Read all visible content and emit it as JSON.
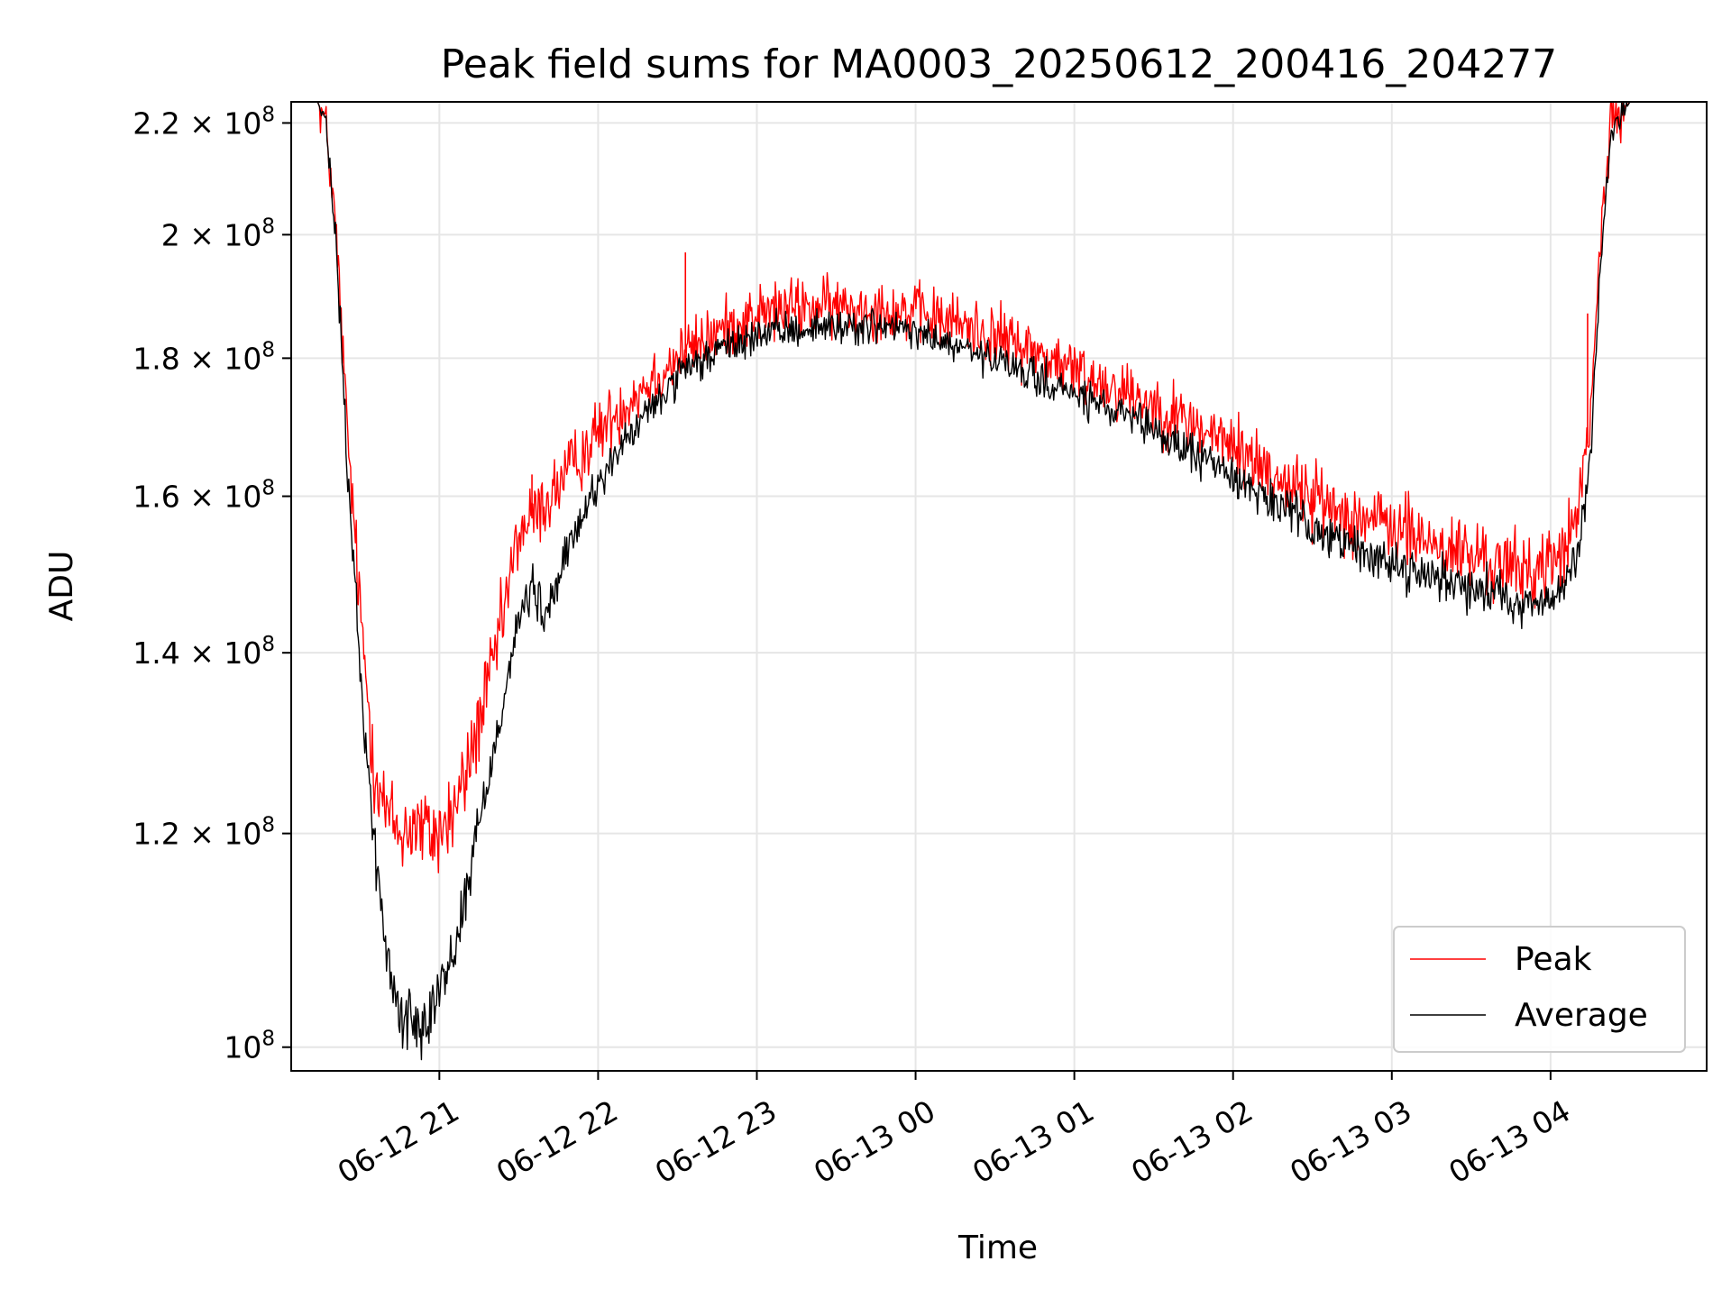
{
  "chart_data": {
    "type": "line",
    "title": "Peak field sums for MA0003_20250612_200416_204277",
    "xlabel": "Time",
    "ylabel": "ADU",
    "y_scale": "log",
    "ylim": [
      98000000,
      224000000
    ],
    "xlim": [
      "2025-06-12 20:04",
      "2025-06-13 04:59"
    ],
    "grid": true,
    "legend_position": "lower right",
    "x_ticks": [
      {
        "t": "2025-06-12 21:00",
        "label": "06-12 21"
      },
      {
        "t": "2025-06-12 22:00",
        "label": "06-12 22"
      },
      {
        "t": "2025-06-12 23:00",
        "label": "06-12 23"
      },
      {
        "t": "2025-06-13 00:00",
        "label": "06-13 00"
      },
      {
        "t": "2025-06-13 01:00",
        "label": "06-13 01"
      },
      {
        "t": "2025-06-13 02:00",
        "label": "06-13 02"
      },
      {
        "t": "2025-06-13 03:00",
        "label": "06-13 03"
      },
      {
        "t": "2025-06-13 04:00",
        "label": "06-13 04"
      }
    ],
    "y_ticks": [
      {
        "value": 100000000,
        "mant": "",
        "base": "10",
        "exp": "8"
      },
      {
        "value": 120000000,
        "mant": "1.2",
        "base": "10",
        "exp": "8"
      },
      {
        "value": 140000000,
        "mant": "1.4",
        "base": "10",
        "exp": "8"
      },
      {
        "value": 160000000,
        "mant": "1.6",
        "base": "10",
        "exp": "8"
      },
      {
        "value": 180000000,
        "mant": "1.8",
        "base": "10",
        "exp": "8"
      },
      {
        "value": 200000000,
        "mant": "2",
        "base": "10",
        "exp": "8"
      },
      {
        "value": 220000000,
        "mant": "2.2",
        "base": "10",
        "exp": "8"
      }
    ],
    "series": [
      {
        "name": "Peak",
        "color": "#ff0000",
        "noise": 2400000,
        "x": [
          "2025-06-12 20:04",
          "2025-06-12 20:14",
          "2025-06-12 20:17",
          "2025-06-12 20:21",
          "2025-06-12 20:25",
          "2025-06-12 20:30",
          "2025-06-12 20:35",
          "2025-06-12 20:40",
          "2025-06-12 20:45",
          "2025-06-12 20:50",
          "2025-06-12 20:55",
          "2025-06-12 21:00",
          "2025-06-12 21:05",
          "2025-06-12 21:10",
          "2025-06-12 21:15",
          "2025-06-12 21:20",
          "2025-06-12 21:25",
          "2025-06-12 21:30",
          "2025-06-12 21:35",
          "2025-06-12 21:40",
          "2025-06-12 21:50",
          "2025-06-12 22:00",
          "2025-06-12 22:15",
          "2025-06-12 22:30",
          "2025-06-12 22:45",
          "2025-06-12 23:00",
          "2025-06-12 23:15",
          "2025-06-12 23:30",
          "2025-06-12 23:45",
          "2025-06-13 00:00",
          "2025-06-13 00:20",
          "2025-06-13 00:40",
          "2025-06-13 01:00",
          "2025-06-13 01:20",
          "2025-06-13 01:40",
          "2025-06-13 02:00",
          "2025-06-13 02:20",
          "2025-06-13 02:40",
          "2025-06-13 03:00",
          "2025-06-13 03:20",
          "2025-06-13 03:40",
          "2025-06-13 03:50",
          "2025-06-13 04:00",
          "2025-06-13 04:05",
          "2025-06-13 04:10",
          "2025-06-13 04:15",
          "2025-06-13 04:19",
          "2025-06-13 04:23",
          "2025-06-13 04:30",
          "2025-06-13 04:59"
        ],
        "y": [
          224000000,
          224000000,
          220000000,
          200000000,
          170000000,
          145000000,
          128000000,
          122000000,
          120000000,
          121000000,
          120000000,
          120000000,
          122000000,
          126000000,
          132000000,
          138000000,
          146000000,
          155000000,
          157000000,
          159000000,
          164000000,
          169000000,
          175000000,
          180000000,
          184000000,
          187000000,
          188000000,
          188000000,
          188000000,
          187000000,
          185000000,
          182000000,
          178000000,
          175000000,
          171000000,
          167000000,
          162000000,
          158000000,
          156000000,
          153000000,
          151000000,
          150000000,
          151000000,
          153000000,
          157000000,
          170000000,
          200000000,
          220000000,
          224000000,
          224000000
        ]
      },
      {
        "name": "Average",
        "color": "#000000",
        "noise": 1400000,
        "x": [
          "2025-06-12 20:04",
          "2025-06-12 20:14",
          "2025-06-12 20:17",
          "2025-06-12 20:21",
          "2025-06-12 20:25",
          "2025-06-12 20:30",
          "2025-06-12 20:35",
          "2025-06-12 20:40",
          "2025-06-12 20:45",
          "2025-06-12 20:50",
          "2025-06-12 20:55",
          "2025-06-12 21:00",
          "2025-06-12 21:05",
          "2025-06-12 21:10",
          "2025-06-12 21:15",
          "2025-06-12 21:20",
          "2025-06-12 21:25",
          "2025-06-12 21:30",
          "2025-06-12 21:35",
          "2025-06-12 21:40",
          "2025-06-12 21:50",
          "2025-06-12 22:00",
          "2025-06-12 22:15",
          "2025-06-12 22:30",
          "2025-06-12 22:45",
          "2025-06-12 23:00",
          "2025-06-12 23:15",
          "2025-06-12 23:30",
          "2025-06-12 23:45",
          "2025-06-13 00:00",
          "2025-06-13 00:20",
          "2025-06-13 00:40",
          "2025-06-13 01:00",
          "2025-06-13 01:20",
          "2025-06-13 01:40",
          "2025-06-13 02:00",
          "2025-06-13 02:20",
          "2025-06-13 02:40",
          "2025-06-13 03:00",
          "2025-06-13 03:20",
          "2025-06-13 03:40",
          "2025-06-13 03:50",
          "2025-06-13 04:00",
          "2025-06-13 04:05",
          "2025-06-13 04:10",
          "2025-06-13 04:15",
          "2025-06-13 04:19",
          "2025-06-13 04:23",
          "2025-06-13 04:30",
          "2025-06-13 04:59"
        ],
        "y": [
          224000000,
          224000000,
          220000000,
          198000000,
          165000000,
          138000000,
          120000000,
          108000000,
          103000000,
          102000000,
          103000000,
          105000000,
          108000000,
          114000000,
          121000000,
          128000000,
          136000000,
          144000000,
          148000000,
          144000000,
          154000000,
          162000000,
          170000000,
          177000000,
          181000000,
          183500000,
          184500000,
          185000000,
          185000000,
          184000000,
          181000000,
          178000000,
          174500000,
          171000000,
          167000000,
          163000000,
          158000000,
          154000000,
          151000000,
          149000000,
          147500000,
          146000000,
          146000000,
          148000000,
          152000000,
          165000000,
          195000000,
          218000000,
          224000000,
          224000000
        ]
      }
    ],
    "annotations": [
      {
        "series": "Peak",
        "x": "2025-06-12 22:33",
        "y": 197000000
      },
      {
        "series": "Peak",
        "x": "2025-06-13 04:14",
        "y": 187000000
      },
      {
        "series": "Peak",
        "x": "2025-06-12 21:35",
        "y": 163000000
      }
    ]
  }
}
